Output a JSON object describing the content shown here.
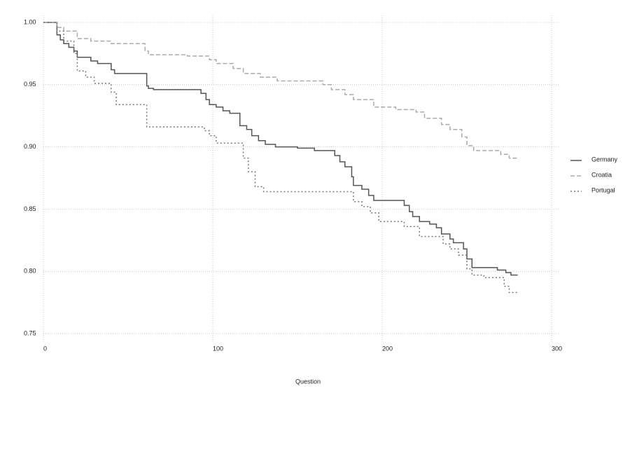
{
  "chart_data": {
    "type": "line",
    "step": true,
    "x_label": "Question",
    "xlim": [
      0,
      300
    ],
    "ylim": [
      0.75,
      1.0
    ],
    "xticks": [
      0,
      100,
      200,
      300
    ],
    "yticks": [
      {
        "value": 0.75,
        "label": "0.75"
      },
      {
        "value": 0.8,
        "label": "0.80"
      },
      {
        "value": 0.85,
        "label": "0.85"
      },
      {
        "value": 0.9,
        "label": "0.90"
      },
      {
        "value": 0.95,
        "label": "0.95"
      },
      {
        "value": 1.0,
        "label": "1.00"
      }
    ],
    "grid": true,
    "legend": "right",
    "series": [
      {
        "name": "Germany",
        "color": "#555555",
        "line_style": "solid",
        "x": [
          0,
          8,
          10,
          12,
          15,
          18,
          20,
          28,
          32,
          40,
          42,
          61,
          62,
          65,
          93,
          96,
          98,
          102,
          106,
          110,
          116,
          120,
          123,
          127,
          131,
          137,
          150,
          160,
          172,
          175,
          178,
          182,
          183,
          188,
          192,
          195,
          213,
          216,
          218,
          222,
          228,
          232,
          235,
          240,
          242,
          248,
          250,
          253,
          268,
          273,
          276,
          280
        ],
        "values": [
          1.0,
          0.99,
          0.986,
          0.983,
          0.98,
          0.977,
          0.972,
          0.969,
          0.967,
          0.962,
          0.959,
          0.949,
          0.947,
          0.946,
          0.943,
          0.938,
          0.934,
          0.932,
          0.929,
          0.927,
          0.917,
          0.914,
          0.909,
          0.905,
          0.902,
          0.9,
          0.899,
          0.897,
          0.893,
          0.888,
          0.884,
          0.876,
          0.869,
          0.866,
          0.861,
          0.857,
          0.853,
          0.848,
          0.844,
          0.84,
          0.838,
          0.835,
          0.83,
          0.826,
          0.823,
          0.818,
          0.81,
          0.803,
          0.801,
          0.799,
          0.797,
          0.797
        ]
      },
      {
        "name": "Croatia",
        "color": "#aaaaaa",
        "line_style": "dashed",
        "x": [
          0,
          8,
          12,
          20,
          28,
          40,
          60,
          62,
          85,
          98,
          102,
          112,
          118,
          128,
          138,
          165,
          170,
          178,
          183,
          195,
          208,
          220,
          225,
          235,
          240,
          247,
          250,
          254,
          270,
          275,
          280
        ],
        "values": [
          1.0,
          0.996,
          0.993,
          0.987,
          0.985,
          0.983,
          0.977,
          0.974,
          0.973,
          0.97,
          0.967,
          0.963,
          0.959,
          0.956,
          0.953,
          0.95,
          0.946,
          0.942,
          0.938,
          0.932,
          0.93,
          0.928,
          0.923,
          0.918,
          0.914,
          0.908,
          0.901,
          0.897,
          0.894,
          0.891,
          0.891
        ]
      },
      {
        "name": "Portugal",
        "color": "#777777",
        "line_style": "dotted",
        "x": [
          0,
          8,
          12,
          18,
          20,
          25,
          30,
          40,
          43,
          61,
          95,
          98,
          102,
          118,
          121,
          125,
          130,
          183,
          188,
          193,
          198,
          213,
          222,
          236,
          240,
          245,
          250,
          253,
          260,
          272,
          275,
          280
        ],
        "values": [
          1.0,
          0.993,
          0.985,
          0.975,
          0.961,
          0.956,
          0.951,
          0.944,
          0.934,
          0.916,
          0.913,
          0.909,
          0.903,
          0.891,
          0.88,
          0.868,
          0.864,
          0.856,
          0.852,
          0.847,
          0.84,
          0.836,
          0.828,
          0.822,
          0.818,
          0.813,
          0.802,
          0.797,
          0.795,
          0.788,
          0.783,
          0.783
        ]
      }
    ]
  }
}
